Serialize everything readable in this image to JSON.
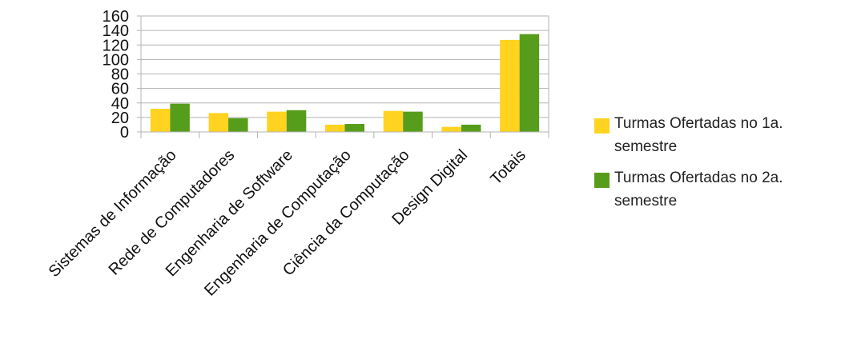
{
  "chart_data": {
    "type": "bar",
    "categories": [
      "Sistemas de Informação",
      "Rede de Computadores",
      "Engenharia de Software",
      "Engenharia de Computação",
      "Ciência da Computação",
      "Design Digital",
      "Totais"
    ],
    "series": [
      {
        "name": "Turmas Ofertadas no 1a. semestre",
        "color": "#ffd320",
        "values": [
          32,
          26,
          28,
          10,
          29,
          7,
          127
        ]
      },
      {
        "name": "Turmas Ofertadas no 2a. semestre",
        "color": "#579d1c",
        "values": [
          39,
          19,
          30,
          11,
          28,
          10,
          135
        ]
      }
    ],
    "yticks": [
      "0",
      "20",
      "40",
      "60",
      "80",
      "100",
      "120",
      "140",
      "160"
    ],
    "ylim": [
      0,
      160
    ],
    "grid": true,
    "legend_position": "right",
    "title": "",
    "xlabel": "",
    "ylabel": ""
  }
}
